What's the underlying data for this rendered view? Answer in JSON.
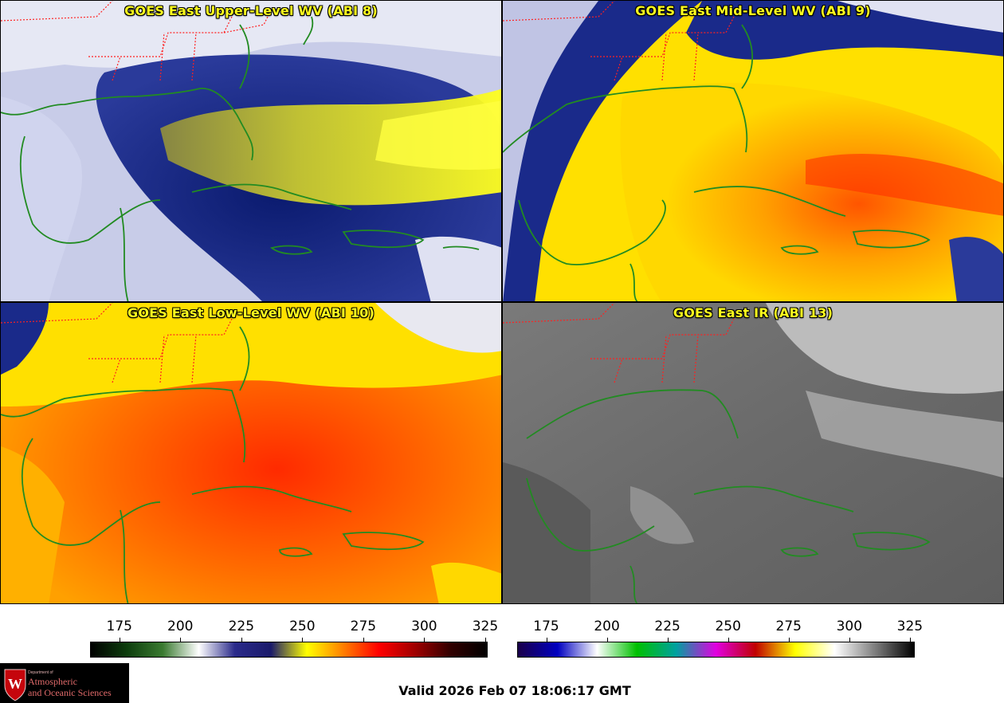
{
  "panels": [
    {
      "title": "GOES East Upper-Level WV (ABI 8)",
      "scheme": "wv_upper"
    },
    {
      "title": "GOES East Mid-Level WV (ABI 9)",
      "scheme": "wv_mid"
    },
    {
      "title": "GOES East Low-Level WV (ABI 10)",
      "scheme": "wv_low"
    },
    {
      "title": "GOES East IR (ABI 13)",
      "scheme": "ir"
    }
  ],
  "colorbar_wv": {
    "ticks": [
      "175",
      "200",
      "225",
      "250",
      "275",
      "300",
      "325"
    ],
    "range": [
      163,
      326
    ],
    "stops": [
      "#000000",
      "#0d3d0d",
      "#3a7a30",
      "#ffffff",
      "#2a2a8a",
      "#1a1a6a",
      "#ffff00",
      "#ff8000",
      "#ff0000",
      "#a00000",
      "#300000",
      "#000000"
    ]
  },
  "colorbar_ir": {
    "ticks": [
      "175",
      "200",
      "225",
      "250",
      "275",
      "300",
      "325"
    ],
    "range": [
      163,
      327
    ],
    "stops": [
      "#1a004a",
      "#0000c0",
      "#ffffff",
      "#00c000",
      "#00a0a0",
      "#e000e0",
      "#c00000",
      "#ffff00",
      "#ffffff",
      "#808080",
      "#000000"
    ]
  },
  "logo": {
    "department": "Department of",
    "line1": "Atmospheric",
    "line2": "and Oceanic Sciences"
  },
  "valid_time": "Valid 2026 Feb 07 18:06:17 GMT",
  "colors": {
    "title_text": "#ffff1e",
    "coastline": "#228b22",
    "state_borders": "#ff2020"
  }
}
